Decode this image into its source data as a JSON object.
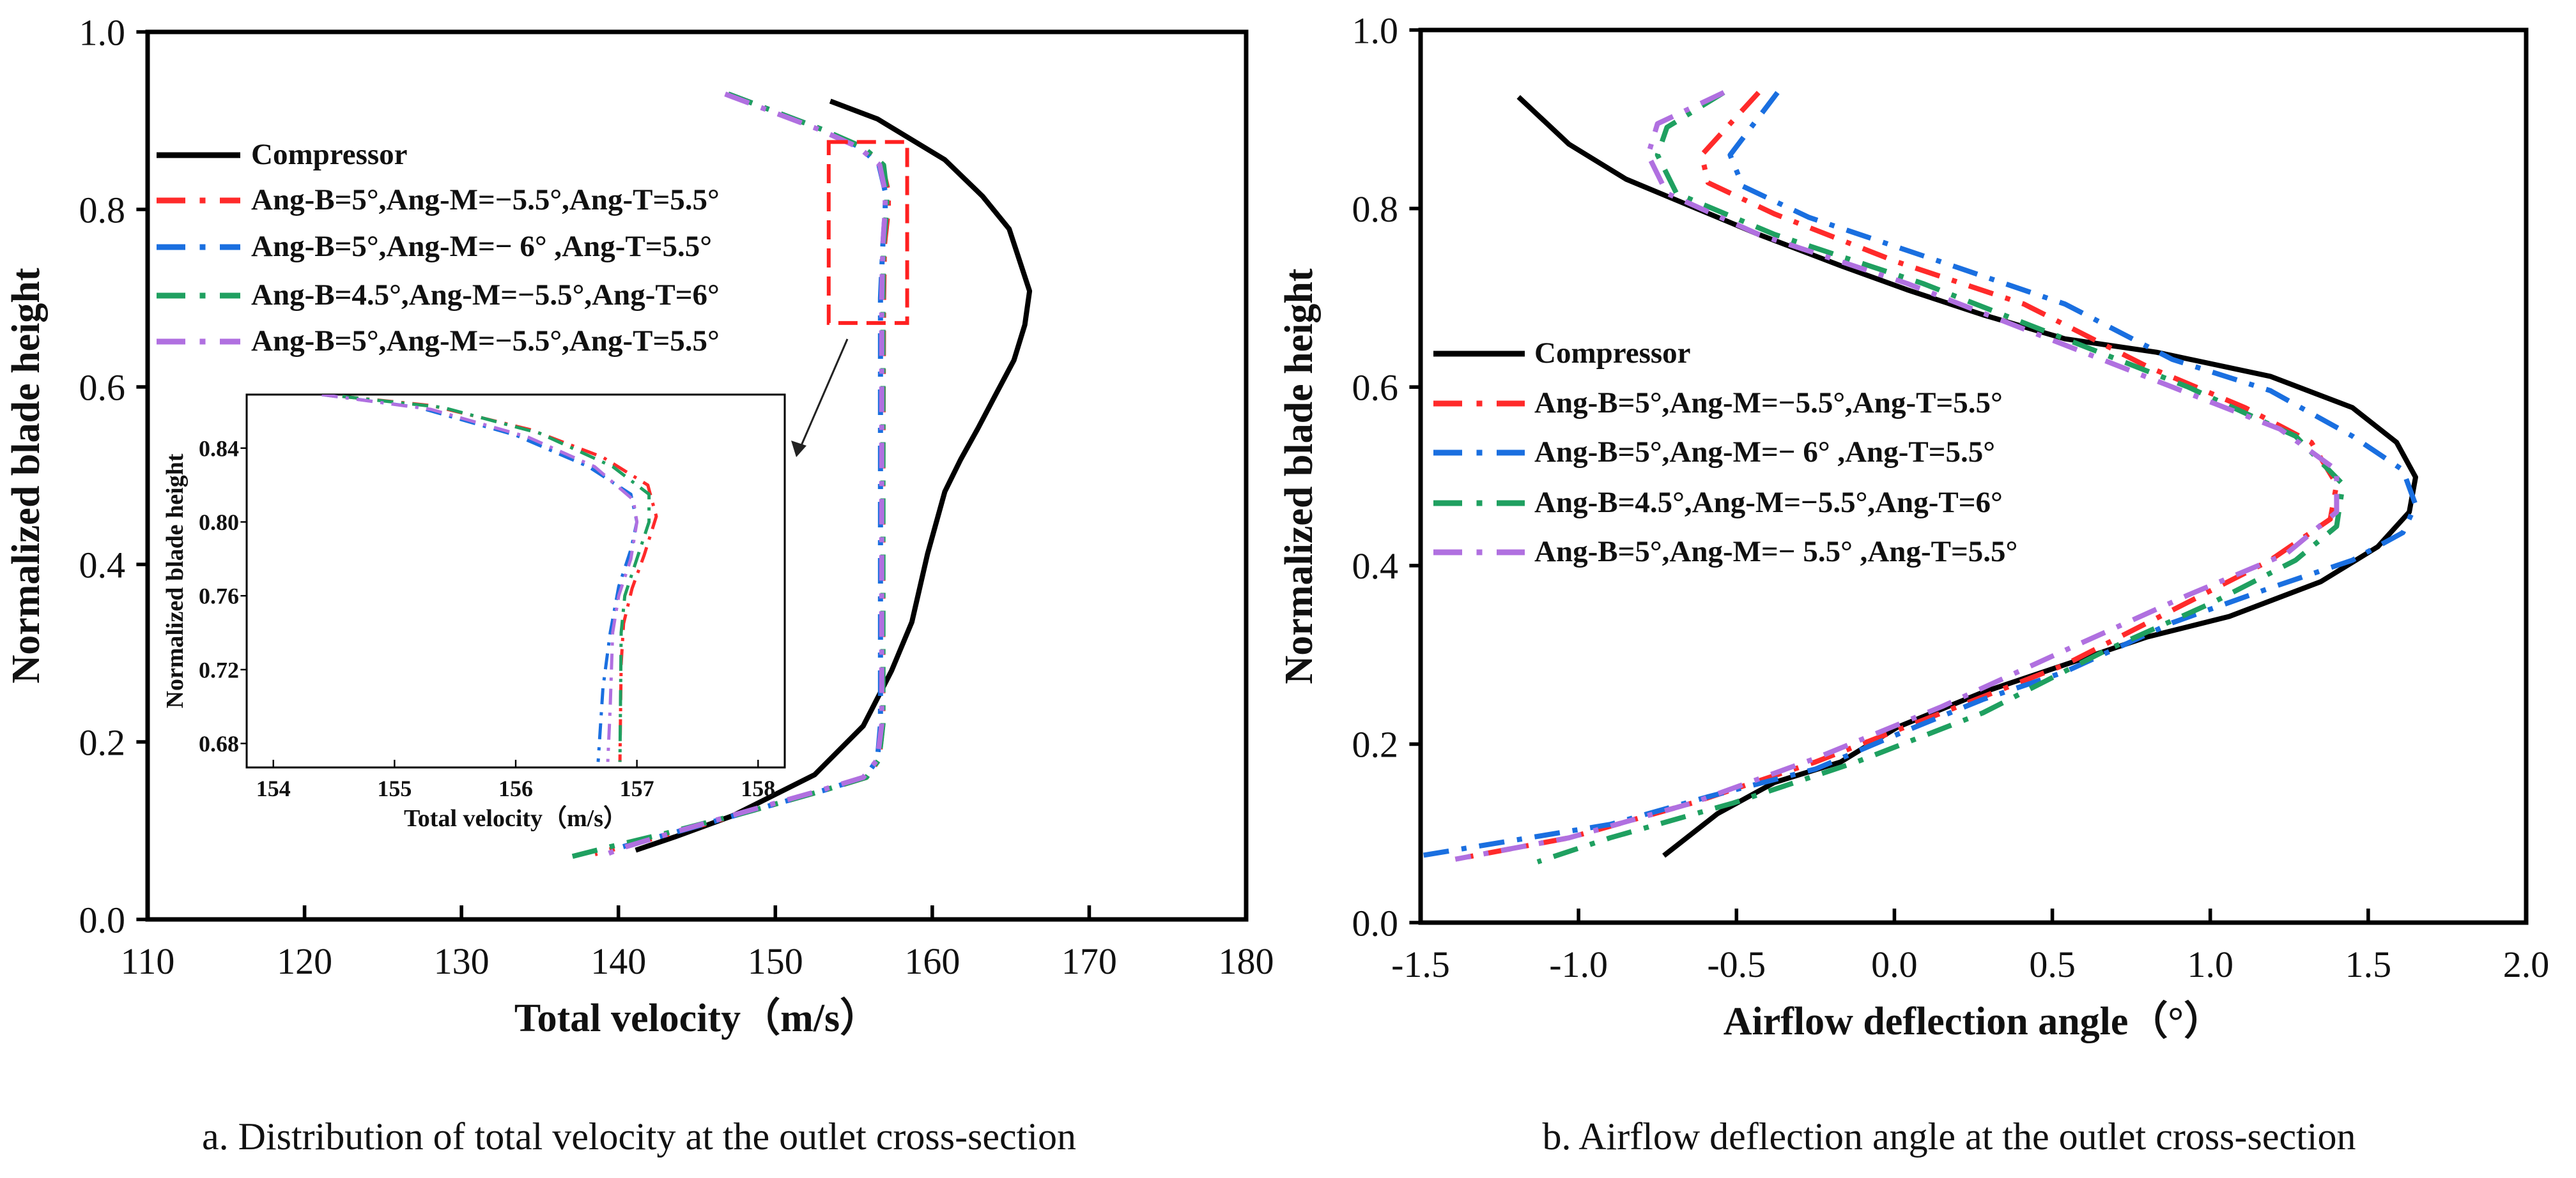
{
  "captions": {
    "a": "a. Distribution of total velocity at the outlet cross-section",
    "b": "b. Airflow deflection angle at the outlet cross-section"
  },
  "chart_data": [
    {
      "id": "velocity",
      "type": "line",
      "title": "",
      "xlabel": "Total velocity（m/s）",
      "ylabel": "Normalized blade height",
      "xlim": [
        110,
        180
      ],
      "ylim": [
        0,
        1
      ],
      "xticks": [
        110,
        120,
        130,
        140,
        150,
        160,
        170,
        180
      ],
      "yticks": [
        0.0,
        0.2,
        0.4,
        0.6,
        0.8,
        1.0
      ],
      "xtick_labels": [
        "110",
        "120",
        "130",
        "140",
        "150",
        "160",
        "170",
        "180"
      ],
      "ytick_labels": [
        "0.0",
        "0.2",
        "0.4",
        "0.6",
        "0.8",
        "1.0"
      ],
      "grid": false,
      "legend_position": "upper-left",
      "highlight_box": {
        "xlim": [
          153.4,
          158.4
        ],
        "ylim": [
          0.672,
          0.876
        ],
        "color": "#ff2020"
      },
      "series": [
        {
          "name": "Compressor",
          "color": "#000000",
          "style": "solid",
          "x": [
            153.5,
            156.5,
            160.8,
            163.2,
            164.9,
            166.2,
            165.9,
            165.2,
            164.0,
            162.9,
            161.8,
            160.8,
            159.7,
            158.7,
            157.4,
            155.6,
            152.5,
            147.3,
            143.6,
            141.1
          ],
          "y": [
            0.922,
            0.902,
            0.856,
            0.815,
            0.778,
            0.708,
            0.67,
            0.63,
            0.59,
            0.553,
            0.518,
            0.482,
            0.412,
            0.335,
            0.28,
            0.218,
            0.163,
            0.117,
            0.093,
            0.078
          ]
        },
        {
          "name": "Ang-B=5°,Ang-M=−5.5°,Ang-T=5.5°",
          "color": "#ff2a2a",
          "style": "dashdot",
          "x": [
            147.0,
            150.0,
            153.0,
            155.5,
            156.8,
            157.2,
            157.2,
            156.95,
            156.9,
            156.85,
            156.85,
            156.85,
            156.6,
            155.8,
            153.0,
            148.0,
            144.0,
            140.5,
            138.5
          ],
          "y": [
            0.93,
            0.91,
            0.89,
            0.87,
            0.85,
            0.82,
            0.8,
            0.76,
            0.7,
            0.5,
            0.3,
            0.22,
            0.18,
            0.16,
            0.145,
            0.12,
            0.1,
            0.083,
            0.074
          ]
        },
        {
          "name": "Ang-B=5°,Ang-M=− 6°  ,Ang-T=5.5°",
          "color": "#1a6fe0",
          "style": "dashdot",
          "x": [
            147.0,
            150.0,
            153.0,
            155.4,
            156.6,
            157.0,
            157.0,
            156.85,
            156.7,
            156.7,
            156.7,
            156.7,
            156.5,
            155.7,
            153.0,
            148.0,
            144.0,
            141.5,
            140.3
          ],
          "y": [
            0.93,
            0.91,
            0.89,
            0.87,
            0.85,
            0.82,
            0.8,
            0.76,
            0.7,
            0.5,
            0.3,
            0.22,
            0.18,
            0.16,
            0.145,
            0.12,
            0.1,
            0.088,
            0.082
          ]
        },
        {
          "name": "Ang-B=4.5°,Ang-M=−5.5°,Ang-T=6°",
          "color": "#1fa060",
          "style": "dashdot",
          "x": [
            147.0,
            150.0,
            153.0,
            155.6,
            156.9,
            157.1,
            157.1,
            156.9,
            156.86,
            156.86,
            156.86,
            156.86,
            156.6,
            155.8,
            153.0,
            148.0,
            143.0,
            139.5,
            136.4
          ],
          "y": [
            0.93,
            0.91,
            0.89,
            0.87,
            0.85,
            0.82,
            0.8,
            0.76,
            0.7,
            0.5,
            0.3,
            0.22,
            0.18,
            0.16,
            0.145,
            0.12,
            0.097,
            0.082,
            0.068
          ]
        },
        {
          "name": "Ang-B=5°,Ang-M=−5.5°,Ang-T=5.5°",
          "color": "#b070e0",
          "style": "dashdot",
          "x": [
            146.8,
            149.8,
            152.8,
            155.3,
            156.65,
            157.0,
            157.0,
            156.85,
            156.78,
            156.78,
            156.78,
            156.78,
            156.5,
            155.6,
            152.8,
            147.8,
            143.5,
            140.5,
            138.7
          ],
          "y": [
            0.93,
            0.91,
            0.89,
            0.87,
            0.85,
            0.82,
            0.8,
            0.76,
            0.7,
            0.5,
            0.3,
            0.22,
            0.18,
            0.16,
            0.145,
            0.12,
            0.098,
            0.082,
            0.07
          ]
        }
      ],
      "inset": {
        "type": "line",
        "xlabel": "Total velocity（m/s）",
        "ylabel": "Normalized blade height",
        "xlim": [
          153.78,
          158.22
        ],
        "ylim": [
          0.667,
          0.869
        ],
        "xticks": [
          154,
          155,
          156,
          157,
          158
        ],
        "yticks": [
          0.68,
          0.72,
          0.76,
          0.8,
          0.84
        ],
        "xtick_labels": [
          "154",
          "155",
          "156",
          "157",
          "158"
        ],
        "ytick_labels": [
          "0.68",
          "0.72",
          "0.76",
          "0.80",
          "0.84"
        ],
        "series": [
          {
            "name": "Ang-B=5°,Ang-M=−5.5°,Ang-T=5.5°",
            "color": "#ff2a2a",
            "style": "dashdot",
            "x": [
              154.57,
              155.31,
              156.12,
              156.72,
              157.09,
              157.16,
              157.06,
              156.96,
              156.89,
              156.87,
              156.86
            ],
            "y": [
              0.868,
              0.863,
              0.85,
              0.835,
              0.82,
              0.803,
              0.782,
              0.764,
              0.745,
              0.723,
              0.67
            ]
          },
          {
            "name": "Ang-B=5°,Ang-M=− 6°  ,Ang-T=5.5°",
            "color": "#1a6fe0",
            "style": "dashdot",
            "x": [
              154.4,
              155.2,
              156.0,
              156.6,
              156.95,
              157.0,
              156.95,
              156.85,
              156.78,
              156.72,
              156.68
            ],
            "y": [
              0.869,
              0.862,
              0.847,
              0.83,
              0.815,
              0.8,
              0.785,
              0.765,
              0.74,
              0.71,
              0.67
            ]
          },
          {
            "name": "Ang-B=4.5°,Ang-M=−5.5°,Ang-T=6°",
            "color": "#1fa060",
            "style": "dashdot",
            "x": [
              154.57,
              155.4,
              156.2,
              156.8,
              157.1,
              157.1,
              157.0,
              156.9,
              156.87,
              156.86
            ],
            "y": [
              0.868,
              0.862,
              0.848,
              0.83,
              0.815,
              0.8,
              0.78,
              0.76,
              0.74,
              0.67
            ]
          },
          {
            "name": "Ang-B=5°,Ang-M=−5.5°,Ang-T=5.5°",
            "color": "#b070e0",
            "style": "dashdot",
            "x": [
              154.4,
              155.3,
              156.1,
              156.65,
              156.97,
              157.0,
              156.95,
              156.85,
              156.8,
              156.78,
              156.76
            ],
            "y": [
              0.869,
              0.861,
              0.846,
              0.83,
              0.812,
              0.8,
              0.78,
              0.76,
              0.74,
              0.7,
              0.67
            ]
          }
        ]
      }
    },
    {
      "id": "deflection",
      "type": "line",
      "title": "",
      "xlabel": "Airflow deflection angle（°）",
      "ylabel": "Normalized blade height",
      "xlim": [
        -1.5,
        2.0
      ],
      "ylim": [
        0,
        1
      ],
      "xticks": [
        -1.5,
        -1.0,
        -0.5,
        0.0,
        0.5,
        1.0,
        1.5,
        2.0
      ],
      "yticks": [
        0.0,
        0.2,
        0.4,
        0.6,
        0.8,
        1.0
      ],
      "xtick_labels": [
        "-1.5",
        "-1.0",
        "-0.5",
        "0.0",
        "0.5",
        "1.0",
        "1.5",
        "2.0"
      ],
      "ytick_labels": [
        "0.0",
        "0.2",
        "0.4",
        "0.6",
        "0.8",
        "1.0"
      ],
      "grid": false,
      "legend_position": "center-left",
      "series": [
        {
          "name": "Compressor",
          "color": "#000000",
          "style": "solid",
          "x": [
            -1.19,
            -1.03,
            -0.85,
            -0.64,
            -0.43,
            -0.17,
            0.04,
            0.28,
            0.54,
            0.83,
            1.19,
            1.45,
            1.59,
            1.65,
            1.63,
            1.53,
            1.35,
            1.06,
            0.8,
            0.54,
            0.28,
            0.01,
            -0.17,
            -0.38,
            -0.56,
            -0.73
          ],
          "y": [
            0.925,
            0.872,
            0.833,
            0.802,
            0.771,
            0.736,
            0.709,
            0.681,
            0.654,
            0.639,
            0.612,
            0.577,
            0.538,
            0.499,
            0.46,
            0.421,
            0.382,
            0.343,
            0.32,
            0.289,
            0.258,
            0.219,
            0.18,
            0.157,
            0.122,
            0.075
          ]
        },
        {
          "name": "Ang-B=5°,Ang-M=−5.5°,Ang-T=5.5°",
          "color": "#ff2a2a",
          "style": "dashdot",
          "x": [
            -0.43,
            -0.61,
            -0.59,
            -0.38,
            0.01,
            0.41,
            0.8,
            1.11,
            1.32,
            1.4,
            1.38,
            1.19,
            0.93,
            0.54,
            0.15,
            -0.25,
            -0.64,
            -1.03,
            -1.39
          ],
          "y": [
            0.93,
            0.86,
            0.829,
            0.794,
            0.74,
            0.693,
            0.623,
            0.577,
            0.538,
            0.491,
            0.452,
            0.406,
            0.359,
            0.289,
            0.235,
            0.18,
            0.134,
            0.095,
            0.071
          ]
        },
        {
          "name": "Ang-B=5°,Ang-M=− 6°  ,Ang-T=5.5°",
          "color": "#1a6fe0",
          "style": "dashdot",
          "x": [
            -0.37,
            -0.52,
            -0.48,
            -0.27,
            0.15,
            0.54,
            0.88,
            1.19,
            1.45,
            1.61,
            1.65,
            1.61,
            1.45,
            1.19,
            0.88,
            0.54,
            0.28,
            0.01,
            -0.25,
            -0.59,
            -0.9,
            -1.5
          ],
          "y": [
            0.93,
            0.86,
            0.825,
            0.79,
            0.74,
            0.693,
            0.631,
            0.596,
            0.545,
            0.507,
            0.468,
            0.437,
            0.406,
            0.375,
            0.336,
            0.281,
            0.25,
            0.211,
            0.172,
            0.141,
            0.11,
            0.075
          ]
        },
        {
          "name": "Ang-B=4.5°,Ang-M=−5.5°,Ang-T=6°",
          "color": "#1fa060",
          "style": "dashdot",
          "x": [
            -0.54,
            -0.72,
            -0.75,
            -0.69,
            -0.38,
            0.09,
            0.54,
            0.93,
            1.27,
            1.42,
            1.4,
            1.27,
            1.01,
            0.67,
            0.28,
            -0.12,
            -0.51,
            -0.9,
            -1.13
          ],
          "y": [
            0.93,
            0.891,
            0.86,
            0.817,
            0.771,
            0.716,
            0.654,
            0.6,
            0.545,
            0.491,
            0.444,
            0.406,
            0.359,
            0.305,
            0.235,
            0.18,
            0.134,
            0.095,
            0.068
          ]
        },
        {
          "name": "Ang-B=5°,Ang-M=− 5.5° ,Ang-T=5.5°",
          "color": "#b070e0",
          "style": "dashdot",
          "x": [
            -0.54,
            -0.75,
            -0.78,
            -0.72,
            -0.43,
            0.04,
            0.49,
            0.88,
            1.22,
            1.4,
            1.4,
            1.24,
            0.93,
            0.54,
            0.15,
            -0.25,
            -0.64,
            -1.03,
            -1.39
          ],
          "y": [
            0.93,
            0.895,
            0.86,
            0.817,
            0.771,
            0.716,
            0.654,
            0.6,
            0.553,
            0.507,
            0.46,
            0.413,
            0.367,
            0.305,
            0.242,
            0.184,
            0.134,
            0.095,
            0.071
          ]
        }
      ]
    }
  ]
}
